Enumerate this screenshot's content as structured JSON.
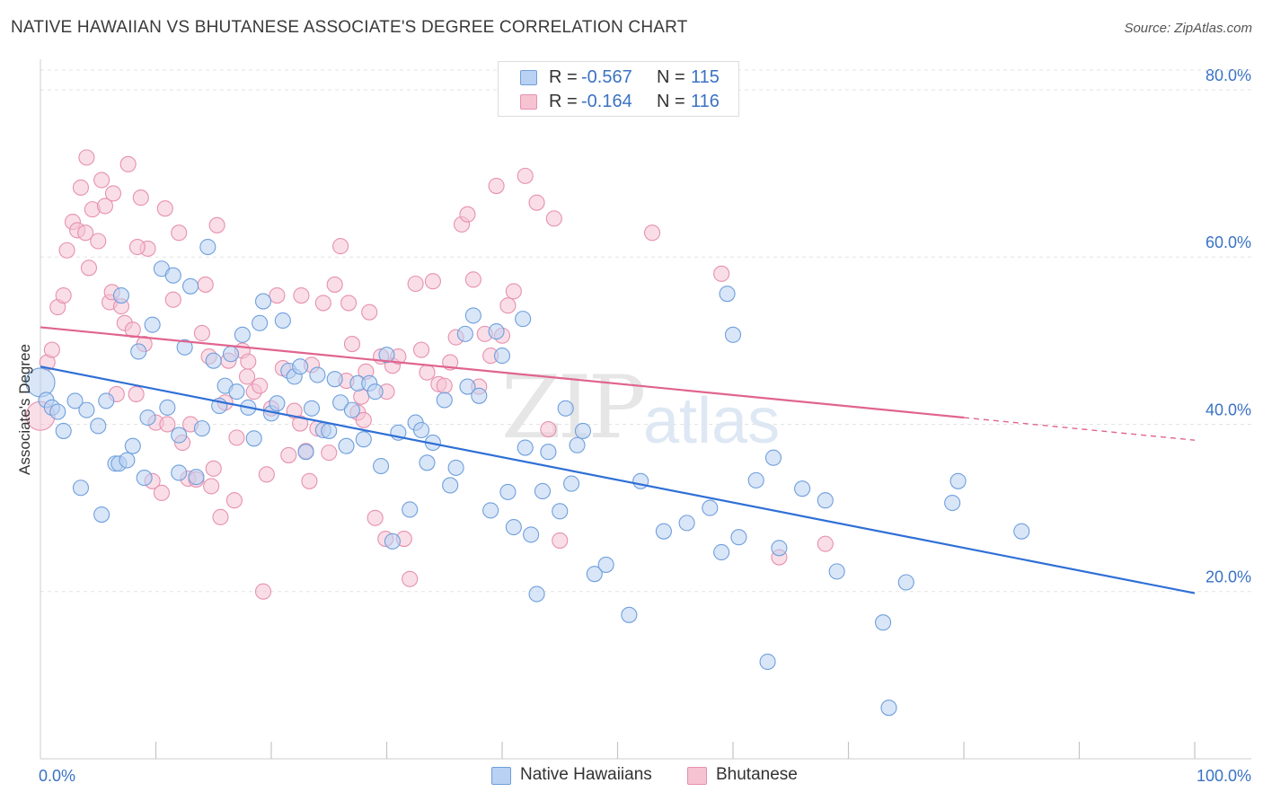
{
  "title": "NATIVE HAWAIIAN VS BHUTANESE ASSOCIATE'S DEGREE CORRELATION CHART",
  "source": "Source: ZipAtlas.com",
  "watermark": {
    "zip": "ZIP",
    "atlas": "atlas"
  },
  "legend_top": {
    "rows": [
      {
        "r_label": "R =",
        "r_value": "-0.567",
        "n_label": "N =",
        "n_value": "115"
      },
      {
        "r_label": "R =",
        "r_value": "-0.164",
        "n_label": "N =",
        "n_value": "116"
      }
    ]
  },
  "colors": {
    "blue_fill": "#b9d1f2",
    "blue_stroke": "#6f9fdc",
    "blue_line": "#2f6fd6",
    "pink_fill": "#f6c3d3",
    "pink_stroke": "#e691ae",
    "pink_line": "#e0648f",
    "tick_text": "#3a72c4",
    "grid": "#e3e3e3"
  },
  "chart_data": {
    "type": "scatter",
    "title": "NATIVE HAWAIIAN VS BHUTANESE ASSOCIATE'S DEGREE CORRELATION CHART",
    "xlabel": "",
    "ylabel": "Associate's Degree",
    "xlim": [
      0,
      100
    ],
    "ylim": [
      0,
      83
    ],
    "x_tick_labels": [
      "0.0%",
      "100.0%"
    ],
    "y_ticks": [
      20,
      40,
      60,
      80
    ],
    "y_tick_labels": [
      "20.0%",
      "40.0%",
      "60.0%",
      "80.0%"
    ],
    "grid": true,
    "legend_position": "bottom-center",
    "series": [
      {
        "name": "Native Hawaiians",
        "r": -0.567,
        "n": 115,
        "trend": {
          "x0": 0,
          "y0": 46.9,
          "x1": 100,
          "y1": 19.8
        },
        "points": [
          [
            0,
            45
          ],
          [
            0.5,
            42.9
          ],
          [
            1,
            42
          ],
          [
            1.5,
            41.5
          ],
          [
            2,
            39.2
          ],
          [
            3,
            42.8
          ],
          [
            3.5,
            32.4
          ],
          [
            4,
            41.7
          ],
          [
            5,
            39.8
          ],
          [
            5.3,
            29.2
          ],
          [
            5.7,
            42.8
          ],
          [
            6.5,
            35.3
          ],
          [
            6.8,
            35.3
          ],
          [
            7,
            55.4
          ],
          [
            7.5,
            35.7
          ],
          [
            8,
            37.4
          ],
          [
            8.5,
            48.7
          ],
          [
            9,
            33.6
          ],
          [
            9.3,
            40.8
          ],
          [
            9.7,
            51.9
          ],
          [
            10.5,
            58.6
          ],
          [
            11,
            42
          ],
          [
            11.5,
            57.8
          ],
          [
            12,
            38.7
          ],
          [
            12.5,
            49.2
          ],
          [
            13,
            56.5
          ],
          [
            13.5,
            33.7
          ],
          [
            14,
            39.5
          ],
          [
            14.5,
            61.2
          ],
          [
            15,
            47.6
          ],
          [
            15.5,
            42.2
          ],
          [
            16,
            44.6
          ],
          [
            16.5,
            48.4
          ],
          [
            17,
            43.9
          ],
          [
            17.5,
            50.7
          ],
          [
            18,
            42
          ],
          [
            18.5,
            38.3
          ],
          [
            19,
            52.1
          ],
          [
            19.3,
            54.7
          ],
          [
            20,
            41.3
          ],
          [
            20.5,
            42.5
          ],
          [
            21,
            52.4
          ],
          [
            21.5,
            46.4
          ],
          [
            22,
            45.7
          ],
          [
            22.5,
            46.9
          ],
          [
            23,
            36.7
          ],
          [
            23.5,
            41.9
          ],
          [
            24,
            45.9
          ],
          [
            24.5,
            39.3
          ],
          [
            25,
            39.2
          ],
          [
            25.5,
            45.4
          ],
          [
            26,
            42.6
          ],
          [
            26.5,
            37.4
          ],
          [
            27,
            41.7
          ],
          [
            27.5,
            44.9
          ],
          [
            28,
            38.2
          ],
          [
            28.5,
            44.9
          ],
          [
            29,
            43.9
          ],
          [
            29.5,
            35
          ],
          [
            30,
            48.3
          ],
          [
            30.5,
            26
          ],
          [
            31,
            39
          ],
          [
            32,
            29.8
          ],
          [
            32.5,
            40.2
          ],
          [
            33,
            39.3
          ],
          [
            33.5,
            35.4
          ],
          [
            34,
            37.8
          ],
          [
            35,
            42.9
          ],
          [
            35.5,
            32.7
          ],
          [
            36,
            34.8
          ],
          [
            37,
            44.5
          ],
          [
            37.5,
            53
          ],
          [
            38,
            43.4
          ],
          [
            39,
            29.7
          ],
          [
            39.5,
            51.1
          ],
          [
            40,
            48.2
          ],
          [
            40.5,
            31.9
          ],
          [
            41,
            27.7
          ],
          [
            42,
            37.2
          ],
          [
            42.5,
            26.8
          ],
          [
            43,
            19.7
          ],
          [
            43.5,
            32
          ],
          [
            44,
            36.7
          ],
          [
            45,
            29.6
          ],
          [
            45.5,
            41.9
          ],
          [
            46,
            32.9
          ],
          [
            46.5,
            37.5
          ],
          [
            47,
            39.2
          ],
          [
            48,
            22.1
          ],
          [
            49,
            23.2
          ],
          [
            51,
            17.2
          ],
          [
            52,
            33.2
          ],
          [
            54,
            27.2
          ],
          [
            56,
            28.2
          ],
          [
            58,
            30
          ],
          [
            59,
            24.7
          ],
          [
            59.5,
            55.6
          ],
          [
            60,
            50.7
          ],
          [
            62,
            33.3
          ],
          [
            63,
            11.6
          ],
          [
            63.5,
            36
          ],
          [
            64,
            25.2
          ],
          [
            66,
            32.3
          ],
          [
            68,
            30.9
          ],
          [
            69,
            22.4
          ],
          [
            73,
            16.3
          ],
          [
            75,
            21.1
          ],
          [
            79,
            30.6
          ],
          [
            79.5,
            33.2
          ],
          [
            85,
            27.2
          ],
          [
            73.5,
            6.1
          ],
          [
            36.8,
            50.8
          ],
          [
            41.8,
            52.6
          ],
          [
            60.5,
            26.5
          ],
          [
            12,
            34.2
          ]
        ]
      },
      {
        "name": "Bhutanese",
        "r": -0.164,
        "n": 116,
        "trend": {
          "x0": 0,
          "y0": 51.6,
          "x1": 80,
          "y1": 40.8
        },
        "trend_dashed": {
          "x0": 80,
          "y0": 40.8,
          "x1": 100,
          "y1": 38.1
        },
        "points": [
          [
            0,
            41
          ],
          [
            0.6,
            47.4
          ],
          [
            1,
            48.9
          ],
          [
            1.5,
            54
          ],
          [
            2,
            55.4
          ],
          [
            2.3,
            60.8
          ],
          [
            2.8,
            64.2
          ],
          [
            3.2,
            63.2
          ],
          [
            3.5,
            68.3
          ],
          [
            4,
            71.9
          ],
          [
            4.2,
            58.7
          ],
          [
            4.5,
            65.7
          ],
          [
            5,
            61.9
          ],
          [
            5.3,
            69.2
          ],
          [
            5.6,
            66.1
          ],
          [
            6,
            54.6
          ],
          [
            6.3,
            67.6
          ],
          [
            6.6,
            43.6
          ],
          [
            7,
            54.1
          ],
          [
            7.3,
            52.1
          ],
          [
            7.6,
            71.1
          ],
          [
            8,
            51.3
          ],
          [
            8.3,
            43.6
          ],
          [
            8.7,
            67.1
          ],
          [
            9,
            49.6
          ],
          [
            9.3,
            61
          ],
          [
            9.7,
            33.2
          ],
          [
            10,
            40.2
          ],
          [
            10.5,
            31.8
          ],
          [
            10.8,
            65.8
          ],
          [
            11,
            40
          ],
          [
            11.5,
            54.9
          ],
          [
            12,
            62.9
          ],
          [
            12.3,
            37.8
          ],
          [
            12.8,
            33.5
          ],
          [
            13,
            40
          ],
          [
            13.5,
            33.4
          ],
          [
            14,
            50.9
          ],
          [
            14.3,
            56.7
          ],
          [
            14.8,
            32.6
          ],
          [
            15,
            34.7
          ],
          [
            15.3,
            63.8
          ],
          [
            15.6,
            28.9
          ],
          [
            16,
            42.6
          ],
          [
            16.3,
            47.6
          ],
          [
            16.8,
            30.9
          ],
          [
            17,
            38.4
          ],
          [
            17.5,
            48.8
          ],
          [
            18,
            47.5
          ],
          [
            18.5,
            43.9
          ],
          [
            19,
            44.6
          ],
          [
            19.3,
            20
          ],
          [
            19.6,
            34
          ],
          [
            20,
            41.9
          ],
          [
            20.5,
            55.4
          ],
          [
            21,
            46.7
          ],
          [
            21.5,
            36.3
          ],
          [
            22,
            41.6
          ],
          [
            22.5,
            40.1
          ],
          [
            23,
            36.8
          ],
          [
            23.5,
            47.1
          ],
          [
            24,
            39.5
          ],
          [
            24.5,
            54.5
          ],
          [
            25,
            36.6
          ],
          [
            25.5,
            56.7
          ],
          [
            26,
            61.3
          ],
          [
            26.5,
            45.2
          ],
          [
            27,
            49.6
          ],
          [
            27.5,
            41.4
          ],
          [
            28,
            40.5
          ],
          [
            28.5,
            53.4
          ],
          [
            29,
            28.8
          ],
          [
            29.5,
            48.1
          ],
          [
            30,
            43.9
          ],
          [
            30.5,
            47
          ],
          [
            31,
            48.1
          ],
          [
            31.5,
            26.3
          ],
          [
            32,
            21.5
          ],
          [
            32.5,
            56.8
          ],
          [
            33,
            48.9
          ],
          [
            33.5,
            46.2
          ],
          [
            34,
            57.1
          ],
          [
            34.5,
            44.8
          ],
          [
            35,
            44.6
          ],
          [
            35.5,
            47.4
          ],
          [
            36,
            50.4
          ],
          [
            36.5,
            63.9
          ],
          [
            37,
            65.1
          ],
          [
            37.5,
            57.3
          ],
          [
            38,
            44.5
          ],
          [
            38.5,
            50.8
          ],
          [
            39,
            48.2
          ],
          [
            39.5,
            68.5
          ],
          [
            40,
            50.6
          ],
          [
            40.5,
            54.2
          ],
          [
            41,
            55.9
          ],
          [
            42,
            69.7
          ],
          [
            43,
            66.5
          ],
          [
            44,
            39.4
          ],
          [
            44.5,
            64.6
          ],
          [
            45,
            26.1
          ],
          [
            53,
            62.9
          ],
          [
            59,
            58
          ],
          [
            64,
            24.1
          ],
          [
            68,
            25.7
          ],
          [
            26.7,
            54.5
          ],
          [
            22.6,
            55.4
          ],
          [
            8.4,
            61.2
          ],
          [
            3.9,
            62.9
          ],
          [
            27.8,
            43.3
          ],
          [
            17.9,
            45.7
          ],
          [
            23.3,
            33.2
          ],
          [
            6.2,
            55.8
          ],
          [
            28.2,
            46.3
          ],
          [
            14.6,
            48.1
          ],
          [
            29.9,
            26.3
          ]
        ]
      }
    ]
  }
}
